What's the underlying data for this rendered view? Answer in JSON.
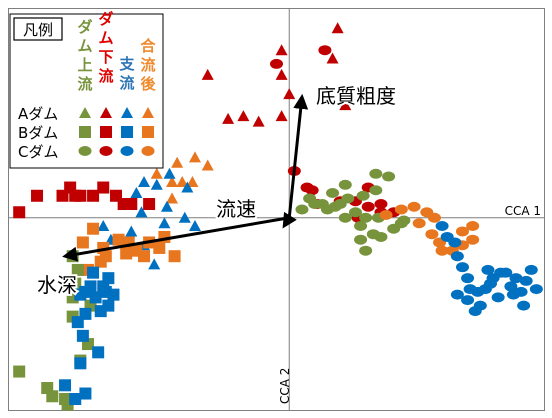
{
  "chart_data": {
    "type": "scatter",
    "xlabel": "CCA 1",
    "ylabel": "CCA 2",
    "xlim": [
      -1.1,
      1.0
    ],
    "ylim": [
      -0.7,
      0.76
    ],
    "grid": false,
    "legend": {
      "position": "top-left",
      "title": "凡例",
      "columns": [
        {
          "key": "up",
          "label": "ダム上流",
          "color": "#77933C",
          "chars": [
            "ダ",
            "ム",
            "上",
            "流"
          ]
        },
        {
          "key": "down",
          "label": "ダム下流",
          "color": "#E00000",
          "chars": [
            "ダ",
            "ム",
            "下",
            "流"
          ]
        },
        {
          "key": "trib",
          "label": "支流",
          "color": "#2E75B6",
          "chars": [
            "支",
            "流"
          ]
        },
        {
          "key": "after",
          "label": "合流後",
          "color": "#F08A2C",
          "chars": [
            "合",
            "流",
            "後"
          ]
        }
      ],
      "rows": [
        {
          "label": "Aダム",
          "marker": "triangle"
        },
        {
          "label": "Bダム",
          "marker": "square"
        },
        {
          "label": "Cダム",
          "marker": "circle"
        }
      ]
    },
    "colors": {
      "up": "#77933C",
      "down": "#C00000",
      "trib": "#0070C0",
      "after": "#E8761F"
    },
    "arrows": [
      {
        "label": "底質粗度",
        "x": 0.05,
        "y": 0.44
      },
      {
        "label": "流速",
        "x": -0.02,
        "y": -0.03
      },
      {
        "label": "水深",
        "x": -0.88,
        "y": -0.14
      }
    ],
    "series": [
      {
        "site": "A",
        "marker": "triangle",
        "group": "down",
        "points": [
          [
            0.19,
            0.69
          ],
          [
            -0.03,
            0.61
          ],
          [
            0.17,
            0.58
          ],
          [
            -0.03,
            0.52
          ],
          [
            -0.32,
            0.52
          ],
          [
            0.0,
            0.45
          ],
          [
            0.22,
            0.41
          ],
          [
            -0.03,
            0.37
          ],
          [
            -0.18,
            0.37
          ],
          [
            -0.12,
            0.35
          ],
          [
            -0.24,
            0.36
          ]
        ]
      },
      {
        "site": "A",
        "marker": "triangle",
        "group": "after",
        "points": [
          [
            -0.37,
            0.22
          ],
          [
            -0.44,
            0.2
          ],
          [
            -0.32,
            0.19
          ],
          [
            -0.38,
            0.13
          ],
          [
            -0.46,
            0.13
          ],
          [
            -0.42,
            0.13
          ],
          [
            -0.52,
            0.16
          ],
          [
            -0.46,
            0.07
          ]
        ]
      },
      {
        "site": "A",
        "marker": "triangle",
        "group": "trib",
        "points": [
          [
            -0.47,
            0.16
          ],
          [
            -0.52,
            0.12
          ],
          [
            -0.57,
            0.13
          ],
          [
            -0.6,
            0.09
          ],
          [
            -0.4,
            0.11
          ],
          [
            -0.48,
            0.04
          ],
          [
            -0.58,
            0.02
          ],
          [
            -0.41,
            0.0
          ],
          [
            -0.49,
            -0.02
          ],
          [
            -0.37,
            -0.03
          ],
          [
            -0.57,
            -0.1
          ],
          [
            -0.62,
            -0.05
          ],
          [
            -0.73,
            -0.03
          ],
          [
            -0.7,
            -0.08
          ],
          [
            -0.53,
            -0.17
          ]
        ]
      },
      {
        "site": "B",
        "marker": "square",
        "group": "down",
        "points": [
          [
            -0.86,
            0.11
          ],
          [
            -0.89,
            0.08
          ],
          [
            -0.84,
            0.08
          ],
          [
            -0.82,
            0.08
          ],
          [
            -0.99,
            0.08
          ],
          [
            -0.77,
            0.08
          ],
          [
            -0.73,
            0.11
          ],
          [
            -0.68,
            0.08
          ],
          [
            -0.65,
            0.05
          ],
          [
            -0.62,
            0.05
          ],
          [
            -1.06,
            0.02
          ],
          [
            -0.55,
            0.05
          ]
        ]
      },
      {
        "site": "B",
        "marker": "square",
        "group": "after",
        "points": [
          [
            -0.77,
            -0.04
          ],
          [
            -0.81,
            -0.09
          ],
          [
            -0.73,
            -0.11
          ],
          [
            -0.67,
            -0.08
          ],
          [
            -0.63,
            -0.09
          ],
          [
            -0.64,
            -0.13
          ],
          [
            -0.72,
            -0.14
          ],
          [
            -0.74,
            -0.16
          ],
          [
            -0.6,
            -0.12
          ],
          [
            -0.55,
            -0.09
          ],
          [
            -0.51,
            -0.11
          ],
          [
            -0.49,
            -0.07
          ],
          [
            -0.57,
            -0.14
          ],
          [
            -0.45,
            -0.14
          ],
          [
            -0.79,
            -0.19
          ]
        ]
      },
      {
        "site": "B",
        "marker": "square",
        "group": "up",
        "points": [
          [
            -0.85,
            -0.14
          ],
          [
            -0.83,
            -0.19
          ],
          [
            -0.84,
            -0.24
          ],
          [
            -0.85,
            -0.29
          ],
          [
            -0.78,
            -0.32
          ],
          [
            -0.85,
            -0.36
          ],
          [
            -0.79,
            -0.46
          ],
          [
            -0.82,
            -0.52
          ],
          [
            -1.06,
            -0.56
          ],
          [
            -0.95,
            -0.62
          ],
          [
            -0.93,
            -0.65
          ],
          [
            -0.88,
            -0.66
          ],
          [
            -0.87,
            -0.68
          ]
        ]
      },
      {
        "site": "B",
        "marker": "square",
        "group": "trib",
        "points": [
          [
            -0.77,
            -0.2
          ],
          [
            -0.71,
            -0.22
          ],
          [
            -0.73,
            -0.25
          ],
          [
            -0.72,
            -0.27
          ],
          [
            -0.78,
            -0.25
          ],
          [
            -0.8,
            -0.27
          ],
          [
            -0.69,
            -0.28
          ],
          [
            -0.76,
            -0.29
          ],
          [
            -0.82,
            -0.28
          ],
          [
            -0.71,
            -0.32
          ],
          [
            -0.74,
            -0.34
          ],
          [
            -0.8,
            -0.35
          ],
          [
            -0.83,
            -0.38
          ],
          [
            -0.81,
            -0.43
          ],
          [
            -0.75,
            -0.49
          ],
          [
            -0.82,
            -0.53
          ],
          [
            -0.8,
            -0.64
          ],
          [
            -0.84,
            -0.66
          ],
          [
            -0.88,
            -0.61
          ]
        ]
      },
      {
        "site": "C",
        "marker": "circle",
        "group": "down",
        "points": [
          [
            0.14,
            0.61
          ],
          [
            -0.05,
            0.56
          ],
          [
            0.02,
            0.17
          ],
          [
            0.07,
            0.11
          ],
          [
            0.09,
            0.1
          ],
          [
            0.11,
            0.05
          ],
          [
            0.2,
            0.06
          ],
          [
            0.26,
            0.06
          ],
          [
            0.31,
            0.11
          ],
          [
            0.36,
            0.05
          ],
          [
            0.31,
            0.04
          ],
          [
            0.36,
            0.02
          ],
          [
            0.41,
            0.02
          ],
          [
            0.27,
            0.0
          ]
        ]
      },
      {
        "site": "C",
        "marker": "circle",
        "group": "up",
        "points": [
          [
            0.05,
            0.03
          ],
          [
            0.08,
            0.07
          ],
          [
            0.1,
            0.05
          ],
          [
            0.13,
            0.05
          ],
          [
            0.15,
            0.03
          ],
          [
            0.18,
            0.04
          ],
          [
            0.2,
            0.05
          ],
          [
            0.23,
            0.07
          ],
          [
            0.29,
            0.08
          ],
          [
            0.34,
            0.1
          ],
          [
            0.34,
            0.16
          ],
          [
            0.39,
            0.15
          ],
          [
            0.22,
            0.12
          ],
          [
            0.17,
            0.09
          ],
          [
            0.26,
            0.02
          ],
          [
            0.3,
            0.0
          ],
          [
            0.35,
            0.0
          ],
          [
            0.22,
            0.0
          ],
          [
            0.28,
            -0.03
          ],
          [
            0.33,
            -0.06
          ],
          [
            0.28,
            -0.08
          ],
          [
            0.3,
            -0.12
          ],
          [
            0.36,
            -0.07
          ],
          [
            0.41,
            -0.04
          ],
          [
            0.45,
            -0.01
          ],
          [
            0.44,
            -0.02
          ]
        ]
      },
      {
        "site": "C",
        "marker": "circle",
        "group": "after",
        "points": [
          [
            0.38,
            0.01
          ],
          [
            0.44,
            0.03
          ],
          [
            0.49,
            0.04
          ],
          [
            0.54,
            0.02
          ],
          [
            0.57,
            0.0
          ],
          [
            0.51,
            -0.02
          ],
          [
            0.56,
            -0.06
          ],
          [
            0.59,
            -0.09
          ],
          [
            0.6,
            -0.12
          ],
          [
            0.64,
            -0.12
          ],
          [
            0.68,
            -0.05
          ],
          [
            0.68,
            -0.1
          ],
          [
            0.72,
            -0.03
          ],
          [
            0.72,
            -0.08
          ]
        ]
      },
      {
        "site": "C",
        "marker": "circle",
        "group": "trib",
        "points": [
          [
            0.6,
            -0.03
          ],
          [
            0.62,
            -0.07
          ],
          [
            0.65,
            -0.09
          ],
          [
            0.66,
            -0.14
          ],
          [
            0.68,
            -0.18
          ],
          [
            0.7,
            -0.22
          ],
          [
            0.71,
            -0.26
          ],
          [
            0.74,
            -0.27
          ],
          [
            0.77,
            -0.26
          ],
          [
            0.79,
            -0.24
          ],
          [
            0.78,
            -0.19
          ],
          [
            0.8,
            -0.22
          ],
          [
            0.83,
            -0.2
          ],
          [
            0.85,
            -0.2
          ],
          [
            0.87,
            -0.25
          ],
          [
            0.88,
            -0.28
          ],
          [
            0.89,
            -0.22
          ],
          [
            0.91,
            -0.27
          ],
          [
            0.93,
            -0.23
          ],
          [
            0.92,
            -0.32
          ],
          [
            0.82,
            -0.29
          ],
          [
            0.75,
            -0.32
          ],
          [
            0.7,
            -0.3
          ],
          [
            0.66,
            -0.28
          ],
          [
            0.73,
            -0.34
          ],
          [
            0.95,
            -0.19
          ],
          [
            0.97,
            -0.26
          ]
        ]
      }
    ]
  }
}
